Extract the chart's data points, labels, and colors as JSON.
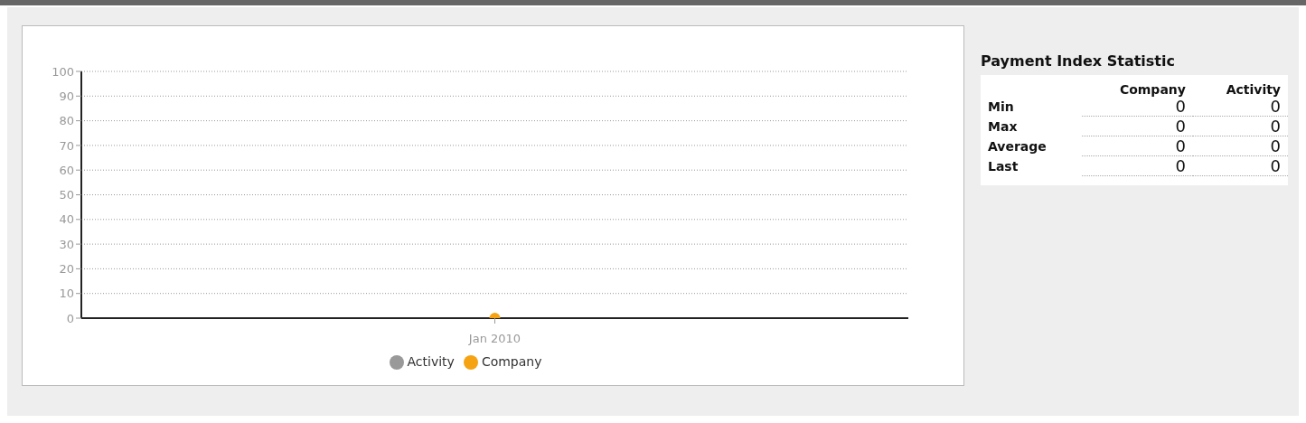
{
  "chart_data": [
    {
      "type": "line",
      "categories": [
        "Jan 2010"
      ],
      "series": [
        {
          "name": "Activity",
          "color": "#999999",
          "values": [
            null
          ]
        },
        {
          "name": "Company",
          "color": "#f5a313",
          "values": [
            0
          ]
        }
      ],
      "ylim": [
        0,
        100
      ],
      "yticks": [
        0,
        10,
        20,
        30,
        40,
        50,
        60,
        70,
        80,
        90,
        100
      ],
      "grid": "y",
      "legend": "bottom",
      "marker": "circle"
    },
    {
      "type": "other",
      "title": "Payment Index Statistic",
      "categories": [
        "Company",
        "Activity"
      ],
      "y_categories": [
        "Min",
        "Max",
        "Average",
        "Last"
      ],
      "cell_labels": [
        [
          "0",
          "0"
        ],
        [
          "0",
          "0"
        ],
        [
          "0",
          "0"
        ],
        [
          "0",
          "0"
        ]
      ]
    }
  ]
}
